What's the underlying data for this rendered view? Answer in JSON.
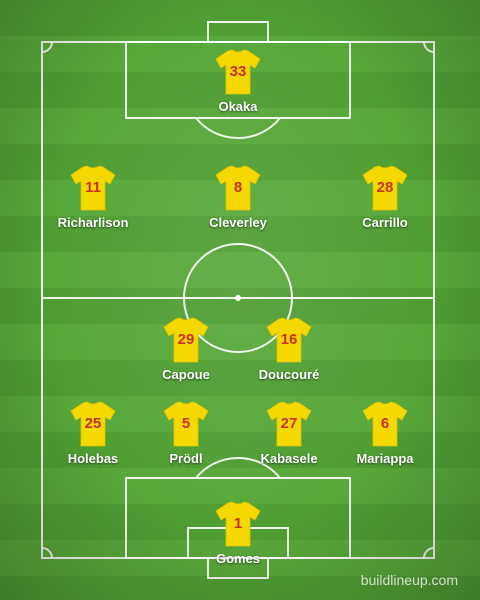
{
  "watermark": "buildlineup.com",
  "colors": {
    "shirt": "#f5d800",
    "number": "#c8322a",
    "name": "#ffffff"
  },
  "players": [
    {
      "id": "okaka",
      "number": "33",
      "name": "Okaka"
    },
    {
      "id": "richarlison",
      "number": "11",
      "name": "Richarlison"
    },
    {
      "id": "cleverley",
      "number": "8",
      "name": "Cleverley"
    },
    {
      "id": "carrillo",
      "number": "28",
      "name": "Carrillo"
    },
    {
      "id": "capoue",
      "number": "29",
      "name": "Capoue"
    },
    {
      "id": "doucoure",
      "number": "16",
      "name": "Doucouré"
    },
    {
      "id": "holebas",
      "number": "25",
      "name": "Holebas"
    },
    {
      "id": "prodl",
      "number": "5",
      "name": "Prödl"
    },
    {
      "id": "kabasele",
      "number": "27",
      "name": "Kabasele"
    },
    {
      "id": "mariappa",
      "number": "6",
      "name": "Mariappa"
    },
    {
      "id": "gomes",
      "number": "1",
      "name": "Gomes"
    }
  ]
}
